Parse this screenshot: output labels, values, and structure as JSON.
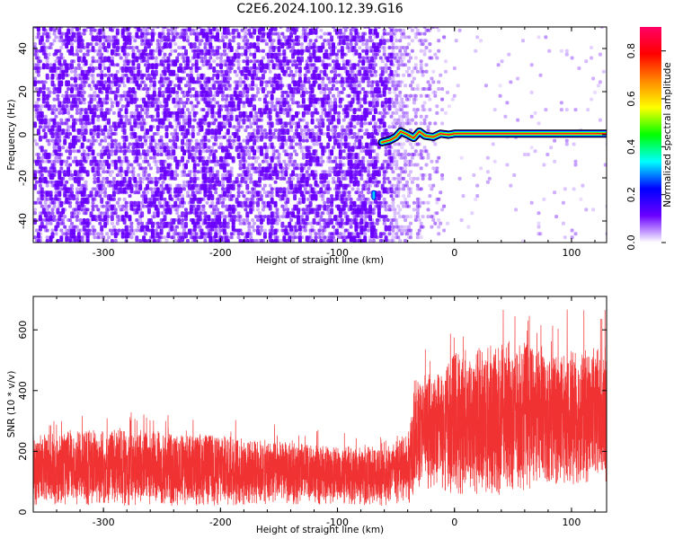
{
  "figure_title": "C2E6.2024.100.12.39.G16",
  "colors": {
    "spectrogram_noise": "#6a00ff",
    "snr_line": "#f03232",
    "frame": "#000000"
  },
  "chart_data": [
    {
      "type": "heatmap",
      "name": "spectrogram",
      "xlabel": "Height of straight line (km)",
      "ylabel": "Frequency (Hz)",
      "xlim": [
        -360,
        130
      ],
      "ylim": [
        -50,
        50
      ],
      "x_ticks": [
        -300,
        -200,
        -100,
        0,
        100
      ],
      "x_tick_labels": [
        "-300",
        "-200",
        "-100",
        "0",
        "100"
      ],
      "y_ticks": [
        -40,
        -20,
        0,
        20,
        40
      ],
      "y_tick_labels": [
        "-40",
        "-20",
        "0",
        "20",
        "40"
      ],
      "noise_region_x": [
        -360,
        -55
      ],
      "noise_fade_x": [
        -55,
        -10
      ],
      "sparse_region_x": [
        -10,
        130
      ],
      "signal_line": {
        "x_start": -60,
        "x_end": 130,
        "freq_hz": 0,
        "wobble_points": [
          [
            -62,
            -3.5
          ],
          [
            -55,
            -2.5
          ],
          [
            -50,
            -1
          ],
          [
            -46,
            1.5
          ],
          [
            -40,
            0
          ],
          [
            -35,
            -1.5
          ],
          [
            -30,
            1.5
          ],
          [
            -25,
            -0.5
          ],
          [
            -18,
            -1
          ],
          [
            -12,
            0.5
          ],
          [
            -5,
            0
          ],
          [
            0,
            0.5
          ],
          [
            130,
            0.5
          ]
        ]
      },
      "isolated_blip": {
        "x": -69,
        "freq_hz": -28
      },
      "colorbar": {
        "label": "Normalized spectral amplitude",
        "range": [
          0,
          0.9
        ],
        "ticks": [
          0.0,
          0.2,
          0.4,
          0.6,
          0.8
        ],
        "tick_labels": [
          "0.0",
          "0.2",
          "0.4",
          "0.6",
          "0.8"
        ],
        "stops": [
          "#ffffff",
          "#6a00ff",
          "#0000ff",
          "#00ffff",
          "#00ff00",
          "#ffff00",
          "#ff8800",
          "#ff0000",
          "#ff0066"
        ]
      }
    },
    {
      "type": "line",
      "name": "snr",
      "xlabel": "Height of straight line (km)",
      "ylabel": "SNR (10 * v/v)",
      "xlim": [
        -360,
        130
      ],
      "ylim": [
        0,
        710
      ],
      "x_ticks": [
        -300,
        -200,
        -100,
        0,
        100
      ],
      "x_tick_labels": [
        "-300",
        "-200",
        "-100",
        "0",
        "100"
      ],
      "y_ticks": [
        0,
        200,
        400,
        600
      ],
      "y_tick_labels": [
        "0",
        "200",
        "400",
        "600"
      ],
      "envelope": [
        {
          "x": -360,
          "min": 20,
          "max": 310,
          "mean": 150
        },
        {
          "x": -300,
          "min": 20,
          "max": 330,
          "mean": 160
        },
        {
          "x": -250,
          "min": 20,
          "max": 330,
          "mean": 155
        },
        {
          "x": -200,
          "min": 20,
          "max": 320,
          "mean": 150
        },
        {
          "x": -150,
          "min": 25,
          "max": 290,
          "mean": 140
        },
        {
          "x": -100,
          "min": 25,
          "max": 260,
          "mean": 130
        },
        {
          "x": -60,
          "min": 20,
          "max": 270,
          "mean": 130
        },
        {
          "x": -40,
          "min": 20,
          "max": 300,
          "mean": 150
        },
        {
          "x": -35,
          "min": 60,
          "max": 580,
          "mean": 240
        },
        {
          "x": -20,
          "min": 80,
          "max": 560,
          "mean": 280
        },
        {
          "x": 0,
          "min": 60,
          "max": 600,
          "mean": 320
        },
        {
          "x": 40,
          "min": 50,
          "max": 680,
          "mean": 340
        },
        {
          "x": 80,
          "min": 90,
          "max": 660,
          "mean": 330
        },
        {
          "x": 130,
          "min": 90,
          "max": 700,
          "mean": 320
        }
      ]
    }
  ]
}
